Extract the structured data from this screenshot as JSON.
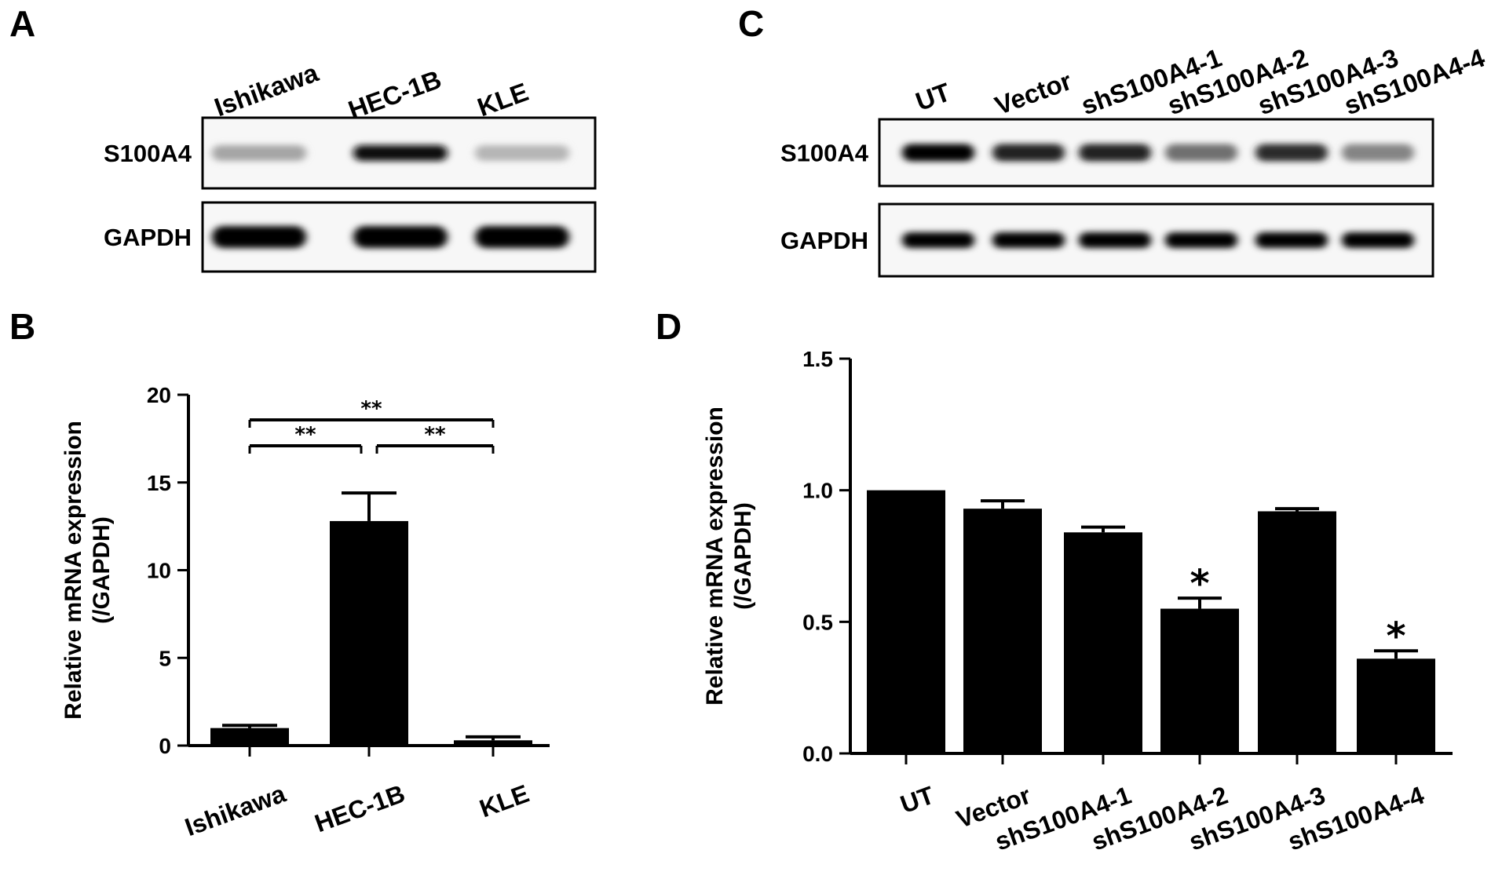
{
  "panels": {
    "A": {
      "letter": "A",
      "lanes": [
        "Ishikawa",
        "HEC-1B",
        "KLE"
      ],
      "blots": [
        {
          "label": "S100A4",
          "band_intensity": [
            0.18,
            0.95,
            0.1
          ]
        },
        {
          "label": "GAPDH",
          "band_intensity": [
            1,
            1,
            1
          ]
        }
      ]
    },
    "C": {
      "letter": "C",
      "lanes": [
        "UT",
        "Vector",
        "shS100A4-1",
        "shS100A4-2",
        "shS100A4-3",
        "shS100A4-4"
      ],
      "blots": [
        {
          "label": "S100A4",
          "band_intensity": [
            1,
            0.85,
            0.85,
            0.45,
            0.8,
            0.35
          ]
        },
        {
          "label": "GAPDH",
          "band_intensity": [
            1,
            1,
            1,
            1,
            1,
            1
          ]
        }
      ]
    },
    "B": {
      "letter": "B"
    },
    "D": {
      "letter": "D"
    }
  },
  "chart_data": [
    {
      "panel": "B",
      "type": "bar",
      "categories": [
        "Ishikawa",
        "HEC-1B",
        "KLE"
      ],
      "values": [
        1.0,
        12.8,
        0.3
      ],
      "errors": [
        0.15,
        1.6,
        0.2
      ],
      "ylabel_line1": "Relative mRNA expression",
      "ylabel_line2": "(/GAPDH)",
      "ylim": [
        0,
        20
      ],
      "yticks": [
        "0",
        "5",
        "10",
        "15",
        "20"
      ],
      "bar_color": "#000000",
      "significance": [
        {
          "from": 0,
          "to": 1,
          "label": "**"
        },
        {
          "from": 1,
          "to": 2,
          "label": "**"
        },
        {
          "from": 0,
          "to": 2,
          "label": "**"
        }
      ]
    },
    {
      "panel": "D",
      "type": "bar",
      "categories": [
        "UT",
        "Vector",
        "shS100A4-1",
        "shS100A4-2",
        "shS100A4-3",
        "shS100A4-4"
      ],
      "values": [
        1.0,
        0.93,
        0.84,
        0.55,
        0.92,
        0.36
      ],
      "errors": [
        0.0,
        0.03,
        0.02,
        0.04,
        0.01,
        0.03
      ],
      "ylabel_line1": "Relative mRNA expression",
      "ylabel_line2": "(/GAPDH)",
      "ylim": [
        0,
        1.5
      ],
      "yticks": [
        "0.0",
        "0.5",
        "1.0",
        "1.5"
      ],
      "bar_color": "#000000",
      "markers": [
        "",
        "",
        "",
        "*",
        "",
        "*"
      ]
    }
  ]
}
